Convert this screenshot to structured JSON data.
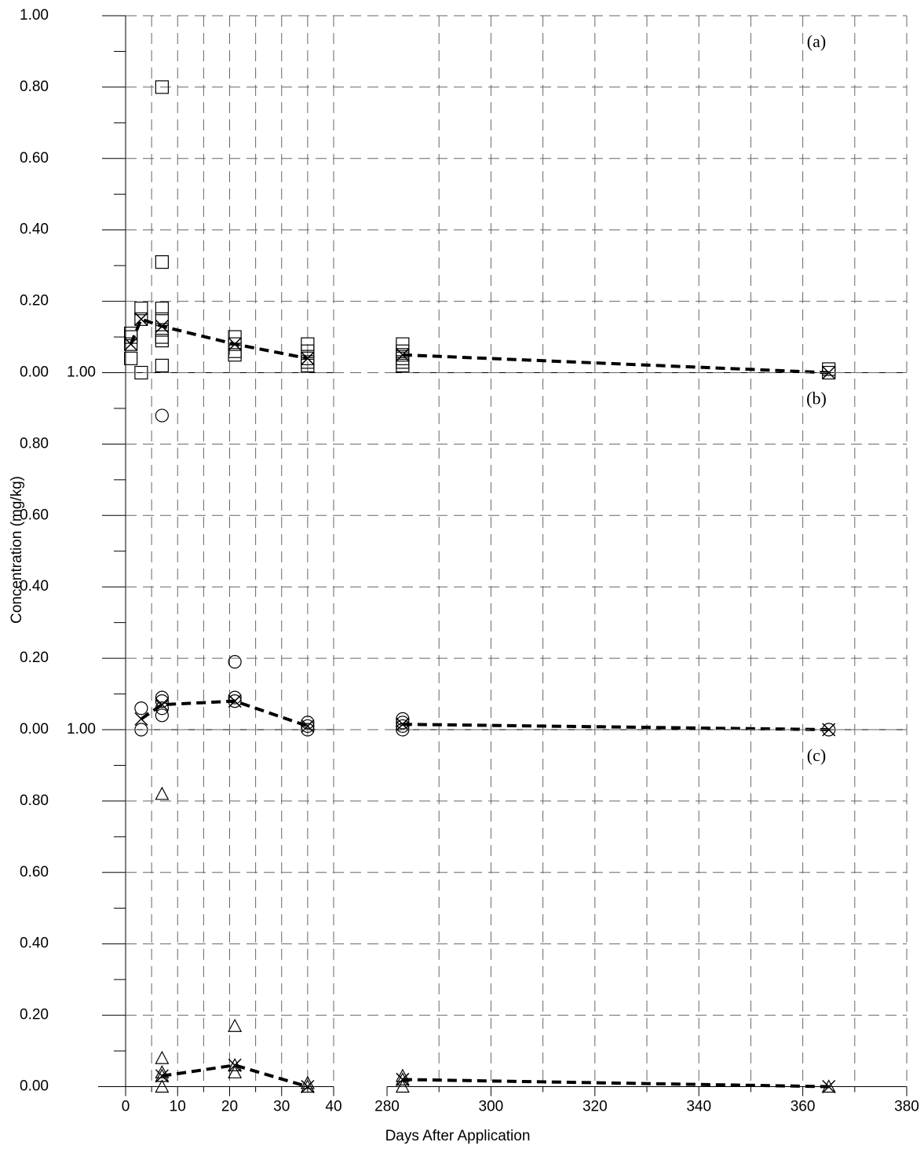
{
  "chart_data": {
    "type": "scatter",
    "xlabel": "Days After Application",
    "ylabel": "Concentration (mg/kg)",
    "xlim": [
      0,
      40
    ],
    "xticks": [
      0,
      10,
      20,
      30,
      40
    ],
    "xminor": [
      5,
      15,
      25,
      35
    ],
    "x2lim": [
      280,
      380
    ],
    "x2ticks": [
      280,
      300,
      320,
      340,
      360,
      380
    ],
    "x2minor": [
      290,
      310,
      330,
      350,
      370
    ],
    "ylim": [
      0,
      1
    ],
    "yticks": [
      {
        "value": 0,
        "label": "0.00"
      },
      {
        "value": 0.2,
        "label": "0.20"
      },
      {
        "value": 0.4,
        "label": "0.40"
      },
      {
        "value": 0.6,
        "label": "0.60"
      },
      {
        "value": 0.8,
        "label": "0.80"
      },
      {
        "value": 1,
        "label": "1.00"
      }
    ],
    "yminor": [
      0.1,
      0.3,
      0.5,
      0.7,
      0.9
    ],
    "grid": true,
    "panels": [
      {
        "annotation": "(a)",
        "marker": "square",
        "samples": {
          "x": [
            1,
            1,
            1,
            1,
            3,
            3,
            3,
            7,
            7,
            7,
            7,
            7,
            7,
            7,
            7,
            21,
            21,
            21,
            21,
            35,
            35,
            35,
            35,
            35,
            283,
            283,
            283,
            283,
            283,
            283,
            365,
            365
          ],
          "y": [
            0.11,
            0.1,
            0.08,
            0.04,
            0.18,
            0.15,
            0.0,
            0.8,
            0.31,
            0.18,
            0.15,
            0.12,
            0.1,
            0.09,
            0.02,
            0.1,
            0.08,
            0.06,
            0.05,
            0.08,
            0.06,
            0.04,
            0.03,
            0.02,
            0.08,
            0.06,
            0.05,
            0.04,
            0.03,
            0.02,
            0.01,
            0.0
          ]
        },
        "mean": {
          "x": [
            1,
            3,
            7,
            21,
            35,
            283,
            365
          ],
          "y": [
            0.08,
            0.15,
            0.13,
            0.08,
            0.04,
            0.05,
            0.0
          ]
        }
      },
      {
        "annotation": "(b)",
        "marker": "circle",
        "samples": {
          "x": [
            3,
            3,
            7,
            7,
            7,
            7,
            7,
            21,
            21,
            21,
            35,
            35,
            35,
            283,
            283,
            283,
            283,
            365
          ],
          "y": [
            0.06,
            0.0,
            0.88,
            0.09,
            0.08,
            0.06,
            0.04,
            0.19,
            0.09,
            0.08,
            0.02,
            0.01,
            0.0,
            0.03,
            0.02,
            0.01,
            0.0,
            0.0
          ]
        },
        "mean": {
          "x": [
            3,
            7,
            21,
            35,
            283,
            365
          ],
          "y": [
            0.03,
            0.07,
            0.08,
            0.01,
            0.015,
            0.0
          ]
        }
      },
      {
        "annotation": "(c)",
        "marker": "triangle",
        "samples": {
          "x": [
            7,
            7,
            7,
            7,
            7,
            21,
            21,
            21,
            35,
            35,
            283,
            283,
            283,
            365
          ],
          "y": [
            0.82,
            0.08,
            0.04,
            0.03,
            0.0,
            0.17,
            0.06,
            0.04,
            0.01,
            0.0,
            0.03,
            0.02,
            0.0,
            0.0
          ]
        },
        "mean": {
          "x": [
            7,
            21,
            35,
            283,
            365
          ],
          "y": [
            0.03,
            0.06,
            0.0,
            0.02,
            0.0
          ]
        }
      }
    ]
  }
}
